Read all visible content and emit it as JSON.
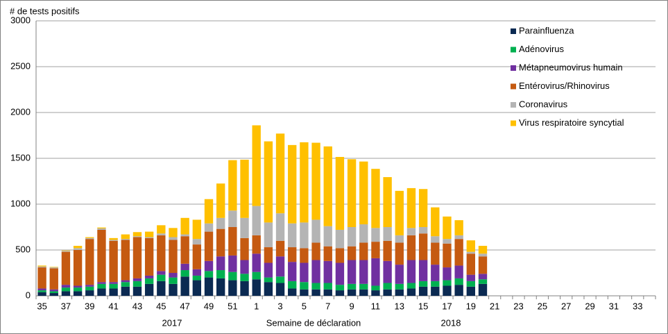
{
  "chart_data": {
    "type": "bar",
    "stacked": true,
    "y_label": "# de tests positifs",
    "x_label": "Semaine de déclaration",
    "annotations": [
      "2017",
      "2018"
    ],
    "categories": [
      "35",
      null,
      "37",
      null,
      "39",
      null,
      "41",
      null,
      "43",
      null,
      "45",
      null,
      "47",
      null,
      "49",
      null,
      "51",
      null,
      "1",
      null,
      "3",
      null,
      "5",
      null,
      "7",
      null,
      "9",
      null,
      "11",
      null,
      "13",
      null,
      "15",
      null,
      "17",
      null,
      "19",
      null,
      "21",
      null,
      "23",
      null,
      "25",
      null,
      "27",
      null,
      "29",
      null,
      "31",
      null,
      "33",
      null
    ],
    "series": [
      {
        "name": "Parainfluenza",
        "color": "#0b2a52",
        "values": [
          40,
          30,
          50,
          50,
          60,
          80,
          80,
          100,
          100,
          130,
          160,
          130,
          210,
          170,
          200,
          190,
          170,
          160,
          180,
          150,
          140,
          80,
          70,
          70,
          70,
          60,
          70,
          70,
          60,
          70,
          70,
          80,
          100,
          100,
          110,
          120,
          100,
          130,
          null,
          null,
          null,
          null,
          null,
          null,
          null,
          null,
          null,
          null,
          null,
          null,
          null,
          null
        ]
      },
      {
        "name": "Adénovirus",
        "color": "#00b050",
        "values": [
          20,
          20,
          40,
          40,
          40,
          50,
          50,
          50,
          60,
          60,
          70,
          70,
          70,
          50,
          70,
          90,
          90,
          80,
          80,
          50,
          70,
          80,
          80,
          70,
          70,
          60,
          60,
          60,
          50,
          70,
          60,
          60,
          60,
          60,
          60,
          70,
          60,
          50,
          null,
          null,
          null,
          null,
          null,
          null,
          null,
          null,
          null,
          null,
          null,
          null,
          null,
          null
        ]
      },
      {
        "name": "Métapneumovirus humain",
        "color": "#7030a0",
        "values": [
          20,
          20,
          30,
          20,
          20,
          20,
          20,
          20,
          30,
          30,
          40,
          50,
          70,
          70,
          110,
          150,
          180,
          150,
          200,
          160,
          220,
          210,
          210,
          250,
          240,
          240,
          260,
          260,
          300,
          240,
          210,
          250,
          230,
          180,
          140,
          140,
          70,
          60,
          null,
          null,
          null,
          null,
          null,
          null,
          null,
          null,
          null,
          null,
          null,
          null,
          null,
          null
        ]
      },
      {
        "name": "Entérovirus/Rhinovirus",
        "color": "#c55a11",
        "values": [
          230,
          230,
          360,
          390,
          500,
          570,
          450,
          440,
          450,
          410,
          390,
          360,
          300,
          270,
          320,
          300,
          310,
          240,
          200,
          170,
          170,
          160,
          160,
          190,
          160,
          160,
          150,
          190,
          180,
          220,
          240,
          270,
          290,
          240,
          260,
          290,
          230,
          190,
          null,
          null,
          null,
          null,
          null,
          null,
          null,
          null,
          null,
          null,
          null,
          null,
          null,
          null
        ]
      },
      {
        "name": "Coronavirus",
        "color": "#b4b4b4",
        "values": [
          10,
          10,
          10,
          20,
          10,
          15,
          10,
          10,
          10,
          10,
          20,
          30,
          20,
          60,
          90,
          120,
          180,
          220,
          320,
          270,
          300,
          260,
          280,
          250,
          220,
          200,
          210,
          200,
          150,
          150,
          80,
          80,
          70,
          70,
          50,
          40,
          20,
          30,
          null,
          null,
          null,
          null,
          null,
          null,
          null,
          null,
          null,
          null,
          null,
          null,
          null,
          null
        ]
      },
      {
        "name": "Virus respiratoire syncytial",
        "color": "#ffc000",
        "values": [
          10,
          5,
          5,
          25,
          10,
          10,
          20,
          50,
          45,
          60,
          90,
          100,
          180,
          210,
          265,
          375,
          550,
          635,
          880,
          885,
          870,
          855,
          875,
          840,
          870,
          795,
          740,
          685,
          645,
          545,
          485,
          435,
          415,
          315,
          245,
          165,
          125,
          85,
          null,
          null,
          null,
          null,
          null,
          null,
          null,
          null,
          null,
          null,
          null,
          null,
          null,
          null
        ]
      }
    ],
    "ylim": [
      0,
      3000
    ],
    "yticks": [
      0,
      500,
      1000,
      1500,
      2000,
      2500,
      3000
    ],
    "grid": true,
    "legend": "top-right"
  }
}
